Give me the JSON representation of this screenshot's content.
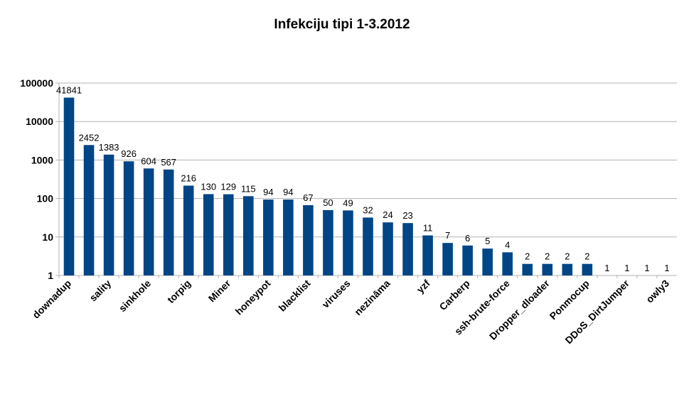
{
  "chart_data": {
    "type": "bar",
    "title": "Infekciju tipi 1-3.2012",
    "xlabel": "",
    "ylabel": "",
    "y_scale": "log",
    "ylim": [
      1,
      100000
    ],
    "y_ticks": [
      1,
      10,
      100,
      1000,
      10000,
      100000
    ],
    "grid": true,
    "legend": "none",
    "bar_color": "#004586",
    "categories": [
      "downadup",
      "",
      "sality",
      "",
      "sinkhole",
      "",
      "torpig",
      "",
      "Miner",
      "",
      "honeypot",
      "",
      "blacklist",
      "",
      "viruses",
      "",
      "nezināma",
      "",
      "yzf",
      "",
      "Carberp",
      "",
      "ssh-brute-force",
      "",
      "Dropper_dloader",
      "",
      "Ponmocup",
      "",
      "DDoS_DirtJumper",
      "",
      "owly3"
    ],
    "values": [
      41841,
      2452,
      1383,
      926,
      604,
      567,
      216,
      130,
      129,
      115,
      94,
      94,
      67,
      50,
      49,
      32,
      24,
      23,
      11,
      7,
      6,
      5,
      4,
      2,
      2,
      2,
      2,
      1,
      1,
      1,
      1
    ]
  }
}
